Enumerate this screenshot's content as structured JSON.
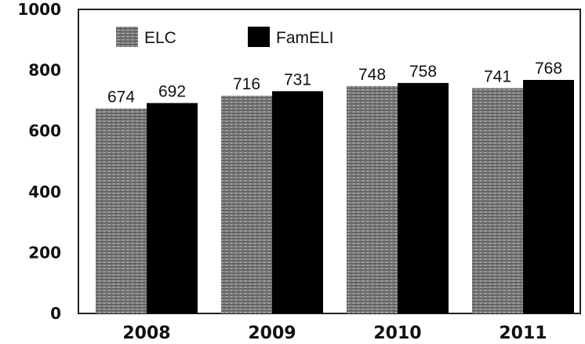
{
  "chart_data": {
    "type": "bar",
    "categories": [
      "2008",
      "2009",
      "2010",
      "2011"
    ],
    "series": [
      {
        "name": "ELC",
        "values": [
          674,
          716,
          748,
          741
        ],
        "color": "#7a7a7a",
        "pattern": "hatched-gray"
      },
      {
        "name": "FamELI",
        "values": [
          692,
          731,
          758,
          768
        ],
        "color": "#000000"
      }
    ],
    "ylim": [
      0,
      1000
    ],
    "yticks": [
      0,
      200,
      400,
      600,
      800,
      1000
    ],
    "grid": false,
    "legend": "top-left",
    "data_labels": true
  }
}
